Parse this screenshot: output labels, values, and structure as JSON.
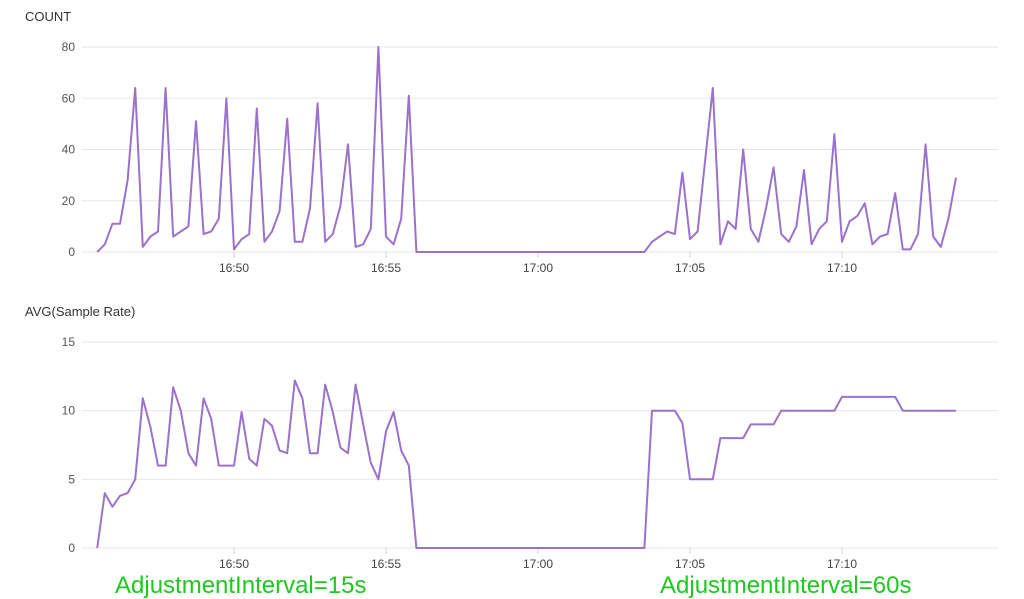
{
  "colors": {
    "series": "#9b72cb",
    "annotation": "#1ec81e",
    "grid": "#e6e6ee"
  },
  "chart_data": [
    {
      "type": "line",
      "title": "COUNT",
      "xlabel": "",
      "ylabel": "",
      "ylim": [
        0,
        80
      ],
      "yticks": [
        "0",
        "20",
        "40",
        "60",
        "80"
      ],
      "xlim": [
        "16:45:30",
        "17:13:45"
      ],
      "xticks": [
        "16:50",
        "16:55",
        "17:00",
        "17:05",
        "17:10"
      ],
      "grid": true,
      "series": [
        {
          "points": [
            [
              "16:45:30",
              0
            ],
            [
              "16:45:45",
              3
            ],
            [
              "16:46:00",
              11
            ],
            [
              "16:46:15",
              11
            ],
            [
              "16:46:30",
              28
            ],
            [
              "16:46:45",
              64
            ],
            [
              "16:47:00",
              2
            ],
            [
              "16:47:15",
              6
            ],
            [
              "16:47:30",
              8
            ],
            [
              "16:47:45",
              64
            ],
            [
              "16:48:00",
              6
            ],
            [
              "16:48:15",
              8
            ],
            [
              "16:48:30",
              10
            ],
            [
              "16:48:45",
              51
            ],
            [
              "16:49:00",
              7
            ],
            [
              "16:49:15",
              8
            ],
            [
              "16:49:30",
              13
            ],
            [
              "16:49:45",
              60
            ],
            [
              "16:50:00",
              1
            ],
            [
              "16:50:15",
              5
            ],
            [
              "16:50:30",
              7
            ],
            [
              "16:50:45",
              56
            ],
            [
              "16:51:00",
              4
            ],
            [
              "16:51:15",
              8
            ],
            [
              "16:51:30",
              16
            ],
            [
              "16:51:45",
              52
            ],
            [
              "16:52:00",
              4
            ],
            [
              "16:52:15",
              4
            ],
            [
              "16:52:30",
              17
            ],
            [
              "16:52:45",
              58
            ],
            [
              "16:53:00",
              4
            ],
            [
              "16:53:15",
              7
            ],
            [
              "16:53:30",
              18
            ],
            [
              "16:53:45",
              42
            ],
            [
              "16:54:00",
              2
            ],
            [
              "16:54:15",
              3
            ],
            [
              "16:54:30",
              9
            ],
            [
              "16:54:45",
              80
            ],
            [
              "16:55:00",
              6
            ],
            [
              "16:55:15",
              3
            ],
            [
              "16:55:30",
              13
            ],
            [
              "16:55:45",
              61
            ],
            [
              "16:56:00",
              0
            ],
            [
              "17:03:30",
              0
            ],
            [
              "17:03:45",
              4
            ],
            [
              "17:04:00",
              6
            ],
            [
              "17:04:15",
              8
            ],
            [
              "17:04:30",
              7
            ],
            [
              "17:04:45",
              31
            ],
            [
              "17:05:00",
              5
            ],
            [
              "17:05:15",
              8
            ],
            [
              "17:05:30",
              36
            ],
            [
              "17:05:45",
              64
            ],
            [
              "17:06:00",
              3
            ],
            [
              "17:06:15",
              12
            ],
            [
              "17:06:30",
              9
            ],
            [
              "17:06:45",
              40
            ],
            [
              "17:07:00",
              9
            ],
            [
              "17:07:15",
              4
            ],
            [
              "17:07:30",
              17
            ],
            [
              "17:07:45",
              33
            ],
            [
              "17:08:00",
              7
            ],
            [
              "17:08:15",
              4
            ],
            [
              "17:08:30",
              10
            ],
            [
              "17:08:45",
              32
            ],
            [
              "17:09:00",
              3
            ],
            [
              "17:09:15",
              9
            ],
            [
              "17:09:30",
              12
            ],
            [
              "17:09:45",
              46
            ],
            [
              "17:10:00",
              4
            ],
            [
              "17:10:15",
              12
            ],
            [
              "17:10:30",
              14
            ],
            [
              "17:10:45",
              19
            ],
            [
              "17:11:00",
              3
            ],
            [
              "17:11:15",
              6
            ],
            [
              "17:11:30",
              7
            ],
            [
              "17:11:45",
              23
            ],
            [
              "17:12:00",
              1
            ],
            [
              "17:12:15",
              1
            ],
            [
              "17:12:30",
              7
            ],
            [
              "17:12:45",
              42
            ],
            [
              "17:13:00",
              6
            ],
            [
              "17:13:15",
              2
            ],
            [
              "17:13:30",
              13
            ],
            [
              "17:13:45",
              29
            ]
          ]
        }
      ]
    },
    {
      "type": "line",
      "title": "AVG(Sample Rate)",
      "xlabel": "",
      "ylabel": "",
      "ylim": [
        0,
        15
      ],
      "yticks": [
        "0",
        "5",
        "10",
        "15"
      ],
      "xlim": [
        "16:45:30",
        "17:13:45"
      ],
      "xticks": [
        "16:50",
        "16:55",
        "17:00",
        "17:05",
        "17:10"
      ],
      "grid": true,
      "series": [
        {
          "points": [
            [
              "16:45:30",
              0
            ],
            [
              "16:45:45",
              4
            ],
            [
              "16:46:00",
              3
            ],
            [
              "16:46:15",
              3.8
            ],
            [
              "16:46:30",
              4
            ],
            [
              "16:46:45",
              5
            ],
            [
              "16:47:00",
              10.9
            ],
            [
              "16:47:15",
              8.8
            ],
            [
              "16:47:30",
              6
            ],
            [
              "16:47:45",
              6
            ],
            [
              "16:48:00",
              11.7
            ],
            [
              "16:48:15",
              10
            ],
            [
              "16:48:30",
              6.9
            ],
            [
              "16:48:45",
              6
            ],
            [
              "16:49:00",
              10.9
            ],
            [
              "16:49:15",
              9.4
            ],
            [
              "16:49:30",
              6
            ],
            [
              "16:49:45",
              6
            ],
            [
              "16:50:00",
              6
            ],
            [
              "16:50:15",
              9.9
            ],
            [
              "16:50:30",
              6.5
            ],
            [
              "16:50:45",
              6
            ],
            [
              "16:51:00",
              9.4
            ],
            [
              "16:51:15",
              8.9
            ],
            [
              "16:51:30",
              7.1
            ],
            [
              "16:51:45",
              6.9
            ],
            [
              "16:52:00",
              12.2
            ],
            [
              "16:52:15",
              10.9
            ],
            [
              "16:52:30",
              6.9
            ],
            [
              "16:52:45",
              6.9
            ],
            [
              "16:53:00",
              11.9
            ],
            [
              "16:53:15",
              9.9
            ],
            [
              "16:53:30",
              7.3
            ],
            [
              "16:53:45",
              6.9
            ],
            [
              "16:54:00",
              11.9
            ],
            [
              "16:54:15",
              9
            ],
            [
              "16:54:30",
              6.2
            ],
            [
              "16:54:45",
              5
            ],
            [
              "16:55:00",
              8.5
            ],
            [
              "16:55:15",
              9.9
            ],
            [
              "16:55:30",
              7.1
            ],
            [
              "16:55:45",
              6
            ],
            [
              "16:56:00",
              0
            ],
            [
              "17:03:30",
              0
            ],
            [
              "17:03:45",
              10
            ],
            [
              "17:04:30",
              10
            ],
            [
              "17:04:45",
              9.1
            ],
            [
              "17:05:00",
              5
            ],
            [
              "17:05:45",
              5
            ],
            [
              "17:06:00",
              8
            ],
            [
              "17:06:45",
              8
            ],
            [
              "17:07:00",
              9
            ],
            [
              "17:07:45",
              9
            ],
            [
              "17:08:00",
              10
            ],
            [
              "17:09:45",
              10
            ],
            [
              "17:10:00",
              11
            ],
            [
              "17:11:45",
              11
            ],
            [
              "17:12:00",
              10
            ],
            [
              "17:13:45",
              10
            ]
          ]
        }
      ]
    }
  ],
  "annotations": [
    "AdjustmentInterval=15s",
    "AdjustmentInterval=60s"
  ]
}
